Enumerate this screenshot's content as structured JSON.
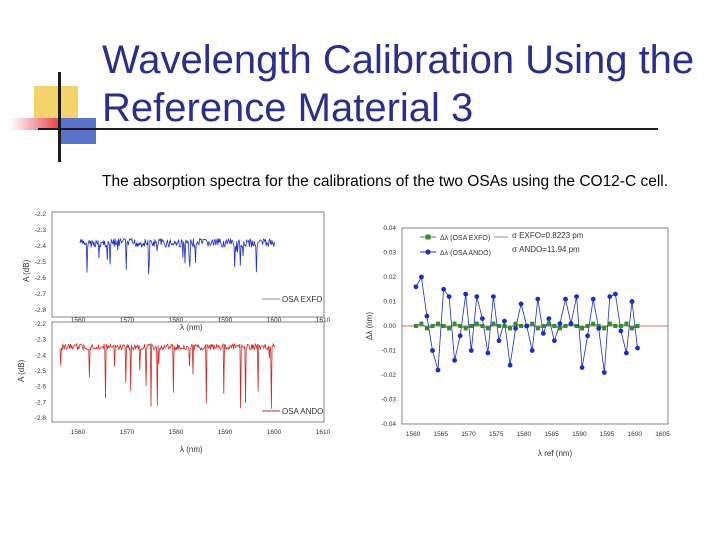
{
  "slide": {
    "title": "Wavelength Calibration Using the Reference Material 3",
    "subtitle": "The absorption spectra for the calibrations of the two OSAs using the CO12-C cell."
  },
  "colors": {
    "title": "#2b2f8c",
    "exfo_trace": "#1f2fcc",
    "ando_trace": "#d12a2a",
    "green_series": "#2e8b2e",
    "blue_series": "#1a2fbf",
    "deco_yellow": "#f5d36a",
    "deco_red": "#e8474c",
    "deco_blue": "#5a72c9"
  },
  "chart_data": [
    {
      "type": "line",
      "ylabel": "A (dB)",
      "xlabel": "λ (nm)",
      "legend": "OSA EXFO",
      "legend_position": "bottom-right",
      "ylim": [
        -2.8,
        -2.2
      ],
      "xlim": [
        1560,
        1610
      ],
      "y_ticks": [
        "-2.2",
        "-2.3",
        "-2.4",
        "-2.5",
        "-2.6",
        "-2.7",
        "-2.8"
      ],
      "x_ticks": [
        "1560",
        "1570",
        "1580",
        "1590",
        "1600",
        "1610"
      ]
    },
    {
      "type": "line",
      "ylabel": "A (dB)",
      "xlabel": "λ (nm)",
      "legend": "OSA ANDO",
      "legend_position": "bottom-right",
      "ylim": [
        -2.8,
        -2.2
      ],
      "xlim": [
        1560,
        1610
      ],
      "y_ticks": [
        "-2.2",
        "-2.3",
        "-2.4",
        "-2.5",
        "-2.6",
        "-2.7",
        "-2.8"
      ],
      "x_ticks": [
        "1560",
        "1570",
        "1580",
        "1590",
        "1600",
        "1610"
      ]
    },
    {
      "type": "scatter",
      "ylabel": "Δλ (nm)",
      "xlabel": "λ ref (nm)",
      "legend_position": "top-right",
      "xlim": [
        1558,
        1606
      ],
      "ylim": [
        -0.04,
        0.04
      ],
      "x_ticks": [
        "1560",
        "1565",
        "1570",
        "1575",
        "1580",
        "1585",
        "1590",
        "1595",
        "1600",
        "1605"
      ],
      "y_ticks": [
        "0.04",
        "0.03",
        "0.02",
        "0.01",
        "0.00",
        "-0.01",
        "-0.02",
        "-0.03",
        "-0.04"
      ],
      "series": [
        {
          "name": "Δλ (OSA EXFO)",
          "stat": "σ EXFO=0.8223 pm",
          "x": [
            1560.5,
            1561.5,
            1562.5,
            1563.5,
            1564.5,
            1565.5,
            1566.5,
            1567.5,
            1568.5,
            1569.5,
            1570.5,
            1571.5,
            1572.5,
            1573.5,
            1574.5,
            1575.5,
            1576.5,
            1577.5,
            1578.5,
            1579.5,
            1580.5,
            1581.5,
            1582.5,
            1583.5,
            1584.5,
            1585.5,
            1586.5,
            1587.5,
            1588.5,
            1589.5,
            1590.5,
            1591.5,
            1592.5,
            1593.5,
            1594.5,
            1595.5,
            1596.5,
            1597.5,
            1598.5,
            1599.5,
            1600.5
          ],
          "y": [
            0.0,
            0.001,
            -0.001,
            0.0,
            0.001,
            0.0,
            -0.001,
            0.001,
            0.0,
            -0.001,
            0.0,
            0.001,
            0.0,
            -0.001,
            0.001,
            0.0,
            0.0,
            -0.001,
            0.001,
            0.0,
            0.0,
            0.001,
            -0.001,
            0.0,
            0.001,
            0.0,
            -0.001,
            0.0,
            0.001,
            0.0,
            -0.001,
            0.0,
            0.001,
            0.0,
            -0.001,
            0.001,
            0.0,
            0.0,
            0.001,
            -0.001,
            0.0
          ]
        },
        {
          "name": "Δλ (OSA ANDO)",
          "stat": "σ ANDO=11.94 pm",
          "x": [
            1560.5,
            1561.5,
            1562.5,
            1563.5,
            1564.5,
            1565.5,
            1566.5,
            1567.5,
            1568.5,
            1569.5,
            1570.5,
            1571.5,
            1572.5,
            1573.5,
            1574.5,
            1575.5,
            1576.5,
            1577.5,
            1578.5,
            1579.5,
            1580.5,
            1581.5,
            1582.5,
            1583.5,
            1584.5,
            1585.5,
            1586.5,
            1587.5,
            1588.5,
            1589.5,
            1590.5,
            1591.5,
            1592.5,
            1593.5,
            1594.5,
            1595.5,
            1596.5,
            1597.5,
            1598.5,
            1599.5,
            1600.5
          ],
          "y": [
            0.016,
            0.02,
            0.004,
            -0.01,
            -0.018,
            0.015,
            0.012,
            -0.014,
            -0.004,
            0.013,
            -0.01,
            0.012,
            0.003,
            -0.011,
            0.012,
            -0.006,
            0.002,
            -0.016,
            -0.001,
            0.009,
            0.0,
            -0.01,
            0.011,
            -0.003,
            0.003,
            -0.006,
            0.001,
            0.011,
            0.001,
            0.012,
            -0.017,
            -0.004,
            0.011,
            -0.001,
            -0.019,
            0.012,
            0.013,
            -0.002,
            -0.011,
            0.01,
            -0.009
          ]
        }
      ]
    }
  ]
}
